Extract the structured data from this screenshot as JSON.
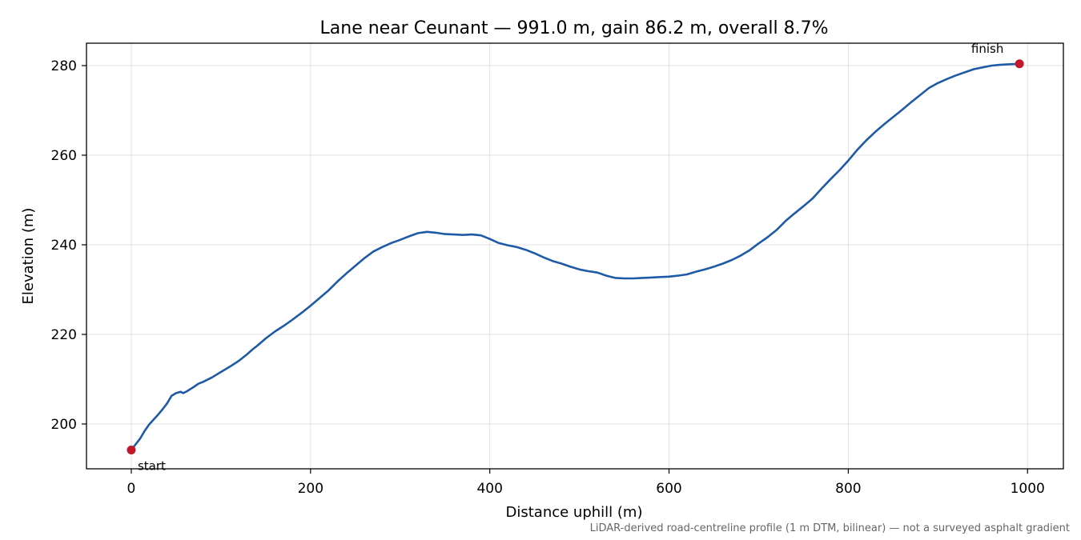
{
  "chart_data": {
    "type": "line",
    "title": "Lane near Ceunant — 991.0 m, gain 86.2 m, overall 8.7%",
    "xlabel": "Distance uphill (m)",
    "ylabel": "Elevation (m)",
    "xlim": [
      -50,
      1040
    ],
    "ylim": [
      190,
      285
    ],
    "xticks": [
      0,
      200,
      400,
      600,
      800,
      1000
    ],
    "yticks": [
      200,
      220,
      240,
      260,
      280
    ],
    "grid": true,
    "line_color": "#1f5aa6",
    "marker_color": "#c0182a",
    "series": [
      {
        "x": [
          0,
          5,
          10,
          15,
          20,
          25,
          30,
          35,
          40,
          45,
          50,
          55,
          58,
          62,
          66,
          70,
          75,
          80,
          85,
          90,
          100,
          110,
          120,
          130,
          135,
          140,
          150,
          160,
          170,
          180,
          190,
          200,
          210,
          220,
          230,
          240,
          250,
          260,
          270,
          280,
          290,
          300,
          310,
          320,
          330,
          340,
          350,
          360,
          370,
          380,
          390,
          400,
          410,
          420,
          430,
          440,
          450,
          460,
          470,
          480,
          490,
          500,
          510,
          520,
          530,
          540,
          550,
          560,
          570,
          580,
          590,
          600,
          610,
          620,
          630,
          640,
          650,
          660,
          670,
          680,
          690,
          700,
          710,
          720,
          730,
          740,
          750,
          760,
          770,
          780,
          790,
          800,
          810,
          820,
          830,
          840,
          850,
          860,
          870,
          880,
          890,
          900,
          910,
          920,
          930,
          940,
          950,
          960,
          970,
          980,
          991
        ],
        "y": [
          194.2,
          195.5,
          196.8,
          198.5,
          199.9,
          201.0,
          202.1,
          203.3,
          204.6,
          206.3,
          206.9,
          207.2,
          206.9,
          207.3,
          207.8,
          208.3,
          209.0,
          209.4,
          209.9,
          210.4,
          211.6,
          212.8,
          214.1,
          215.7,
          216.6,
          217.4,
          219.1,
          220.6,
          221.9,
          223.3,
          224.8,
          226.4,
          228.1,
          229.8,
          231.8,
          233.6,
          235.3,
          237.0,
          238.5,
          239.5,
          240.4,
          241.1,
          241.9,
          242.6,
          242.9,
          242.7,
          242.4,
          242.3,
          242.2,
          242.3,
          242.1,
          241.3,
          240.4,
          239.9,
          239.5,
          238.9,
          238.1,
          237.2,
          236.4,
          235.8,
          235.1,
          234.5,
          234.1,
          233.8,
          233.1,
          232.6,
          232.5,
          232.5,
          232.6,
          232.7,
          232.8,
          232.9,
          233.1,
          233.4,
          234.0,
          234.5,
          235.1,
          235.8,
          236.6,
          237.6,
          238.8,
          240.3,
          241.7,
          243.3,
          245.3,
          247.0,
          248.6,
          250.3,
          252.5,
          254.6,
          256.6,
          258.8,
          261.2,
          263.3,
          265.2,
          266.9,
          268.5,
          270.1,
          271.8,
          273.4,
          275.0,
          276.1,
          277.0,
          277.8,
          278.5,
          279.2,
          279.6,
          280.0,
          280.2,
          280.3,
          280.4
        ]
      }
    ],
    "annotations": [
      {
        "text": "start",
        "x": 0,
        "y": 194.2
      },
      {
        "text": "finish",
        "x": 991,
        "y": 280.4
      }
    ],
    "footnote": "LiDAR-derived road-centreline profile (1 m DTM, bilinear) — not a surveyed asphalt gradient"
  }
}
